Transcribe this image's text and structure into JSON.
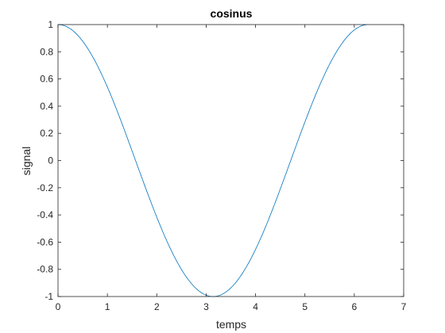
{
  "chart_data": {
    "type": "line",
    "title": "cosinus",
    "xlabel": "temps",
    "ylabel": "signal",
    "xlim": [
      0,
      7
    ],
    "ylim": [
      -1,
      1
    ],
    "xticks": [
      0,
      1,
      2,
      3,
      4,
      5,
      6,
      7
    ],
    "xtick_labels": [
      "0",
      "1",
      "2",
      "3",
      "4",
      "5",
      "6",
      "7"
    ],
    "yticks": [
      -1,
      -0.8,
      -0.6,
      -0.4,
      -0.2,
      0,
      0.2,
      0.4,
      0.6,
      0.8,
      1
    ],
    "ytick_labels": [
      "-1",
      "-0.8",
      "-0.6",
      "-0.4",
      "-0.2",
      "0",
      "0.2",
      "0.4",
      "0.6",
      "0.8",
      "1"
    ],
    "grid": false,
    "box": true,
    "series": [
      {
        "function": "cos",
        "color": "#0072BD",
        "x": [
          0,
          0.25,
          0.5,
          0.75,
          1.0,
          1.25,
          1.5,
          1.75,
          2.0,
          2.25,
          2.5,
          2.75,
          3.0,
          3.25,
          3.5,
          3.75,
          4.0,
          4.25,
          4.5,
          4.75,
          5.0,
          5.25,
          5.5,
          5.75,
          6.0,
          6.25
        ],
        "y": [
          1.0,
          0.969,
          0.878,
          0.732,
          0.54,
          0.315,
          0.071,
          -0.178,
          -0.416,
          -0.628,
          -0.801,
          -0.924,
          -0.99,
          -0.994,
          -0.936,
          -0.82,
          -0.654,
          -0.446,
          -0.211,
          0.037,
          0.284,
          0.512,
          0.709,
          0.861,
          0.96,
          1.0
        ]
      }
    ]
  }
}
